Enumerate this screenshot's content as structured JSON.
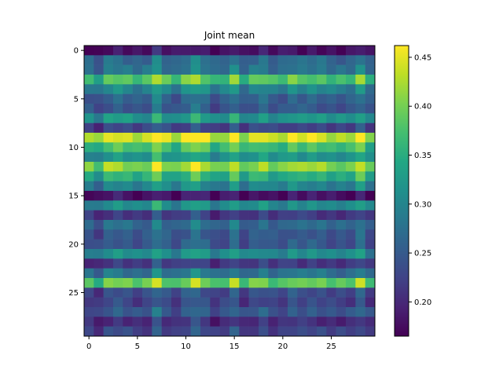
{
  "chart_data": {
    "type": "heatmap",
    "title": "Joint mean",
    "xlabel": "",
    "ylabel": "",
    "n_rows": 30,
    "n_cols": 30,
    "x_ticks": [
      0,
      5,
      10,
      15,
      20,
      25
    ],
    "y_ticks": [
      0,
      5,
      10,
      15,
      20,
      25
    ],
    "colormap": "viridis",
    "color_range": [
      0.165,
      0.462
    ],
    "colorbar_ticks": [
      0.2,
      0.25,
      0.3,
      0.35,
      0.4,
      0.45
    ],
    "colorbar_tick_labels": [
      "0.20",
      "0.25",
      "0.30",
      "0.35",
      "0.40",
      "0.45"
    ],
    "row_means": [
      0.175,
      0.26,
      0.27,
      0.37,
      0.29,
      0.25,
      0.24,
      0.31,
      0.22,
      0.43,
      0.36,
      0.31,
      0.4,
      0.34,
      0.29,
      0.175,
      0.3,
      0.21,
      0.26,
      0.24,
      0.24,
      0.3,
      0.21,
      0.27,
      0.38,
      0.23,
      0.22,
      0.24,
      0.2,
      0.22
    ],
    "col_offsets": [
      0.0,
      -0.02,
      0.015,
      0.02,
      0.01,
      0.0,
      0.005,
      0.05,
      0.01,
      -0.005,
      0.02,
      0.045,
      0.02,
      -0.01,
      0.0,
      0.035,
      -0.01,
      0.01,
      0.02,
      0.0,
      0.0,
      0.02,
      0.01,
      0.015,
      0.01,
      0.0,
      0.0,
      0.0,
      0.035,
      -0.01
    ]
  }
}
